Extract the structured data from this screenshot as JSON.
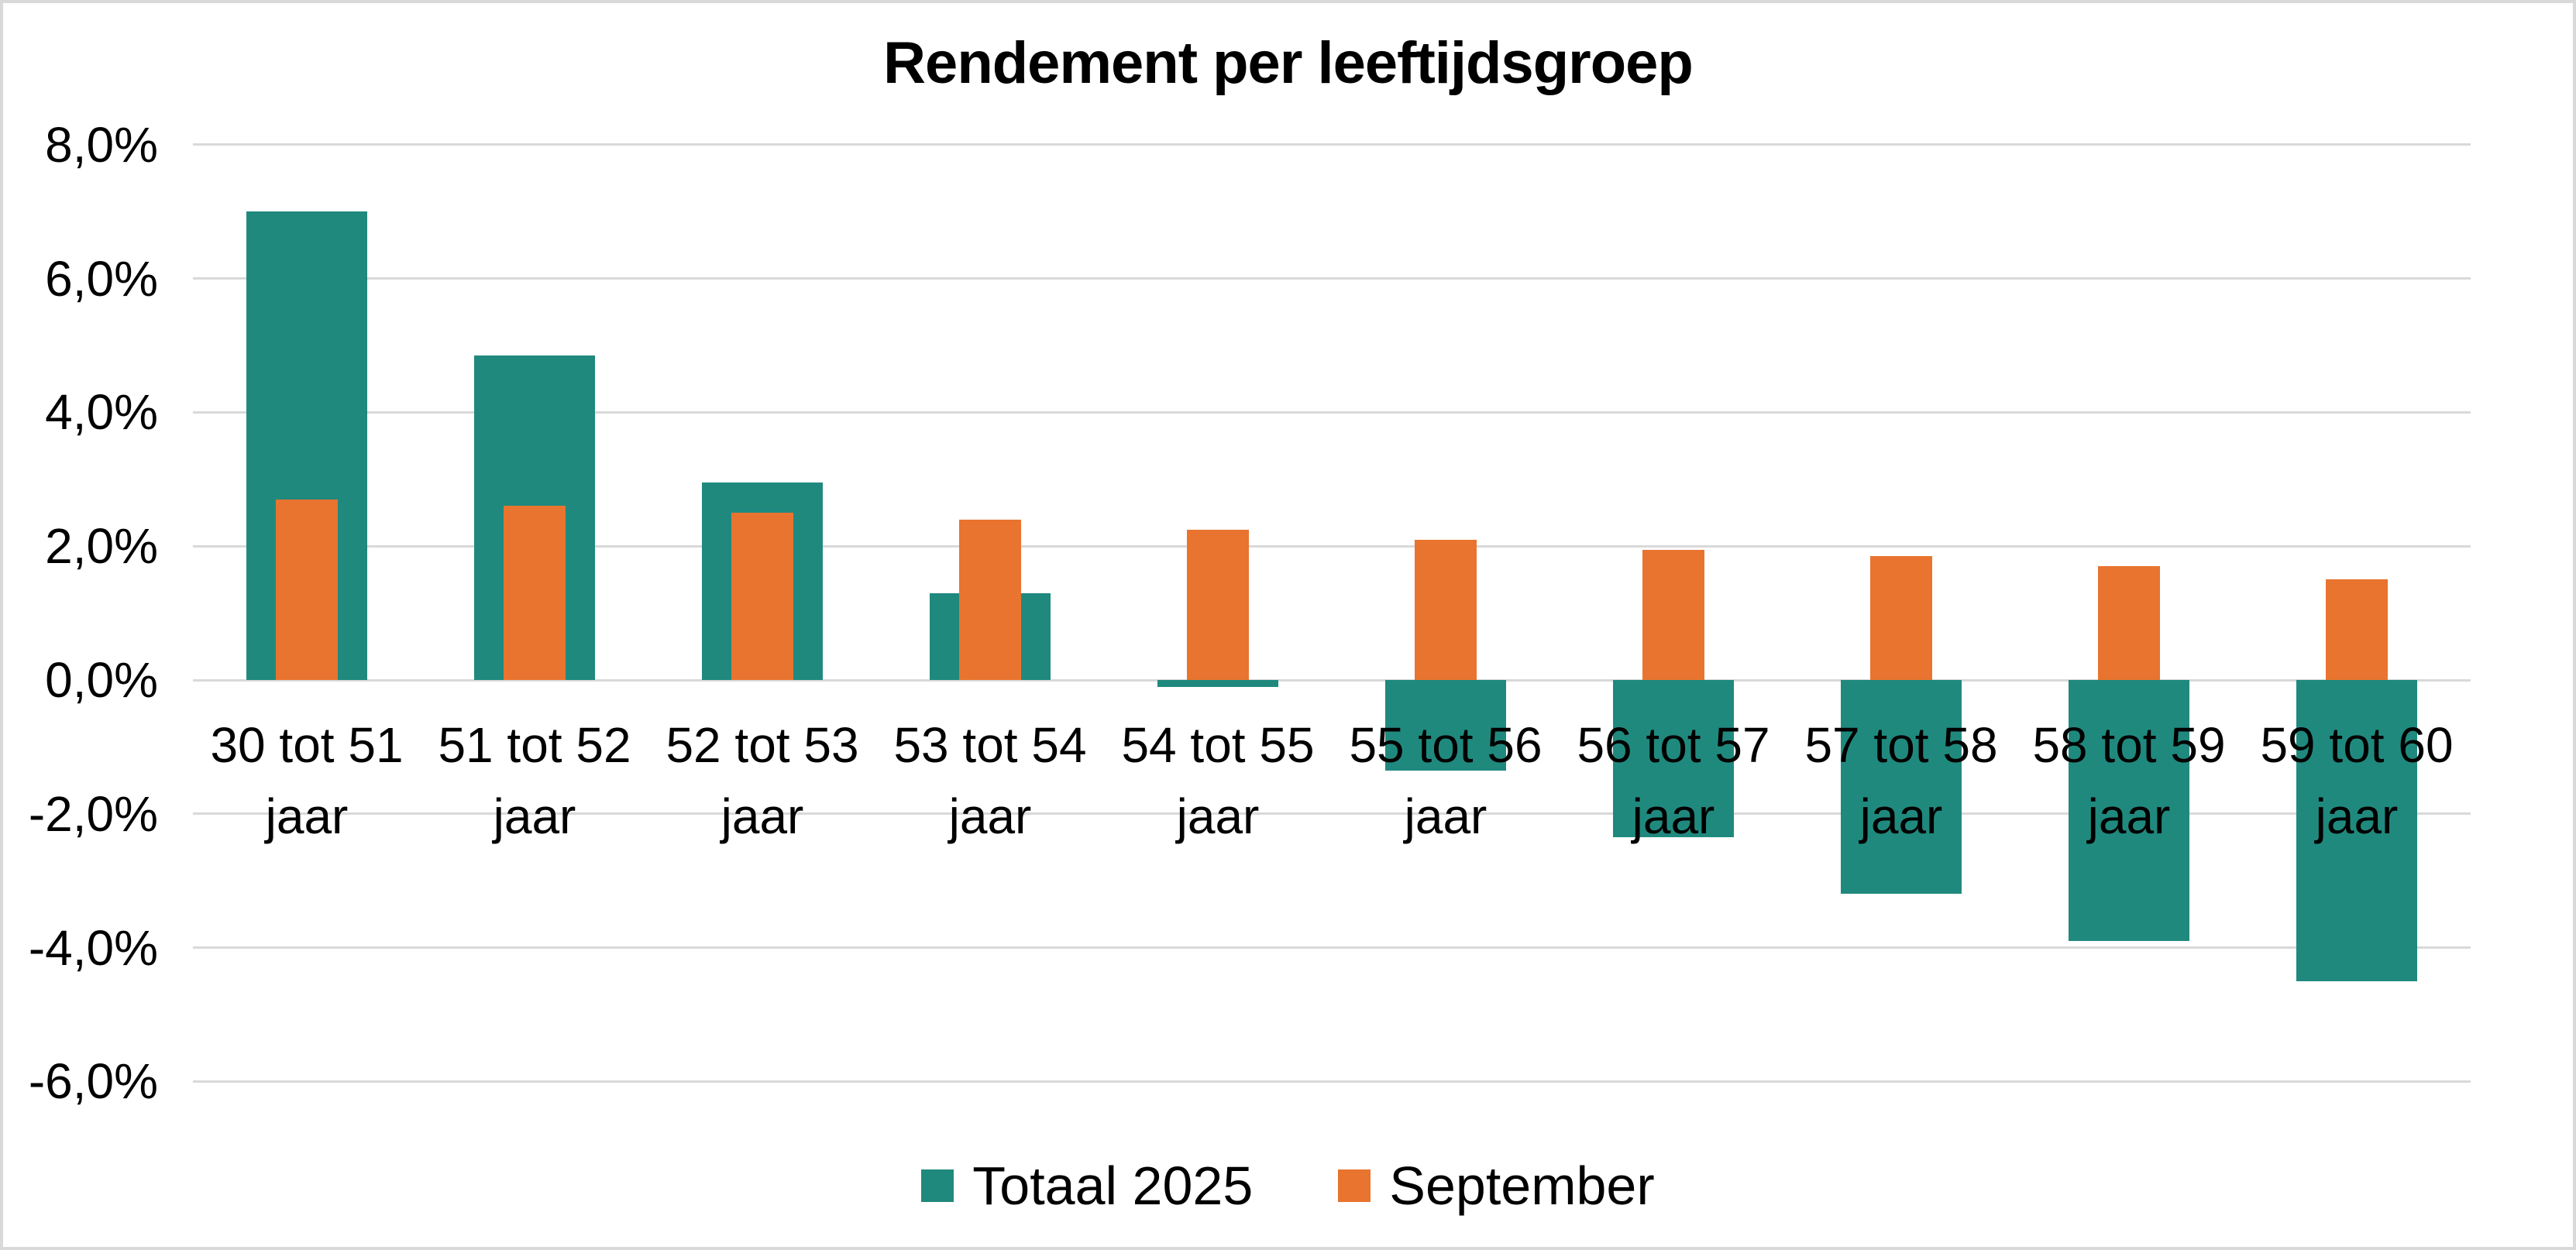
{
  "chart_data": {
    "type": "bar",
    "title": "Rendement per leeftijdsgroep",
    "categories": [
      "30 tot 51 jaar",
      "51 tot 52 jaar",
      "52 tot 53 jaar",
      "53 tot 54 jaar",
      "54 tot 55 jaar",
      "55 tot 56 jaar",
      "56 tot 57 jaar",
      "57 tot 58 jaar",
      "58 tot 59 jaar",
      "59 tot 60 jaar"
    ],
    "series": [
      {
        "name": "Totaal 2025",
        "color": "#20897E",
        "values": [
          7.0,
          4.85,
          2.95,
          1.3,
          -0.1,
          -1.35,
          -2.35,
          -3.2,
          -3.9,
          -4.5
        ]
      },
      {
        "name": "September",
        "color": "#E8742F",
        "values": [
          2.7,
          2.6,
          2.5,
          2.4,
          2.25,
          2.1,
          1.95,
          1.85,
          1.7,
          1.5
        ]
      }
    ],
    "y_axis": {
      "ticks": [
        {
          "value": 8,
          "label": "8,0%"
        },
        {
          "value": 6,
          "label": "6,0%"
        },
        {
          "value": 4,
          "label": "4,0%"
        },
        {
          "value": 2,
          "label": "2,0%"
        },
        {
          "value": 0,
          "label": "0,0%"
        },
        {
          "value": -2,
          "label": "-2,0%"
        },
        {
          "value": -4,
          "label": "-4,0%"
        },
        {
          "value": -6,
          "label": "-6,0%"
        }
      ],
      "min": -6,
      "max": 8,
      "number_format": "dutch-comma-percent"
    },
    "grid": true,
    "legend_position": "bottom",
    "colors": {
      "gridline": "#d9d9d9",
      "text": "#000000",
      "background": "#ffffff"
    }
  }
}
